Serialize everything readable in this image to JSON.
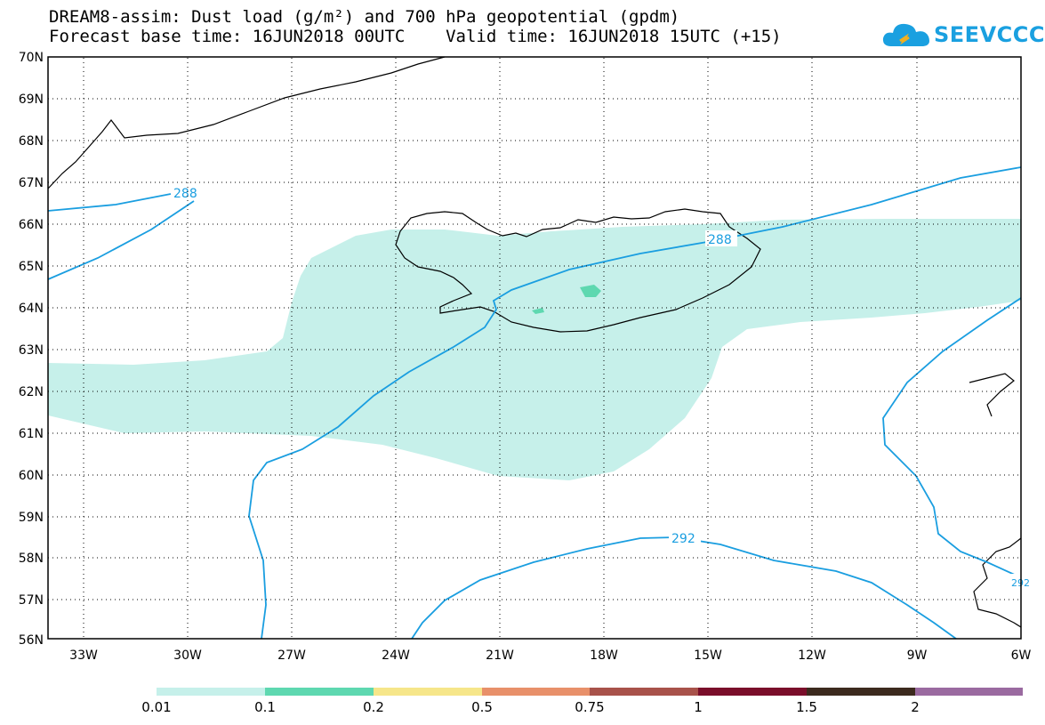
{
  "title": {
    "line1": "DREAM8-assim: Dust load (g/m²) and 700 hPa geopotential (gpdm)",
    "line2": "Forecast base time: 16JUN2018 00UTC    Valid time: 16JUN2018 15UTC (+15)"
  },
  "logo": {
    "text": "SEEVCCC",
    "icon": "cloud-icon",
    "color": "#1aa0e0"
  },
  "map": {
    "lat_labels": [
      "70N",
      "69N",
      "68N",
      "67N",
      "66N",
      "65N",
      "64N",
      "63N",
      "62N",
      "61N",
      "60N",
      "59N",
      "58N",
      "57N",
      "56N"
    ],
    "lon_labels": [
      "33W",
      "30W",
      "27W",
      "24W",
      "21W",
      "18W",
      "15W",
      "12W",
      "9W",
      "6W"
    ],
    "contour_labels": [
      "288",
      "288",
      "292",
      "292"
    ],
    "contour_color": "#1a9ee0",
    "dust_color": "#c6f0ea",
    "dust_core_color": "#5ed8b0"
  },
  "colorbar": {
    "labels": [
      "0.01",
      "0.1",
      "0.2",
      "0.5",
      "0.75",
      "1",
      "1.5",
      "2"
    ],
    "colors": [
      "#c6f0ea",
      "#5ed8b0",
      "#f6e68a",
      "#e8906a",
      "#a8524a",
      "#7a0e2a",
      "#3c2a1e",
      "#9a6aa0"
    ]
  }
}
